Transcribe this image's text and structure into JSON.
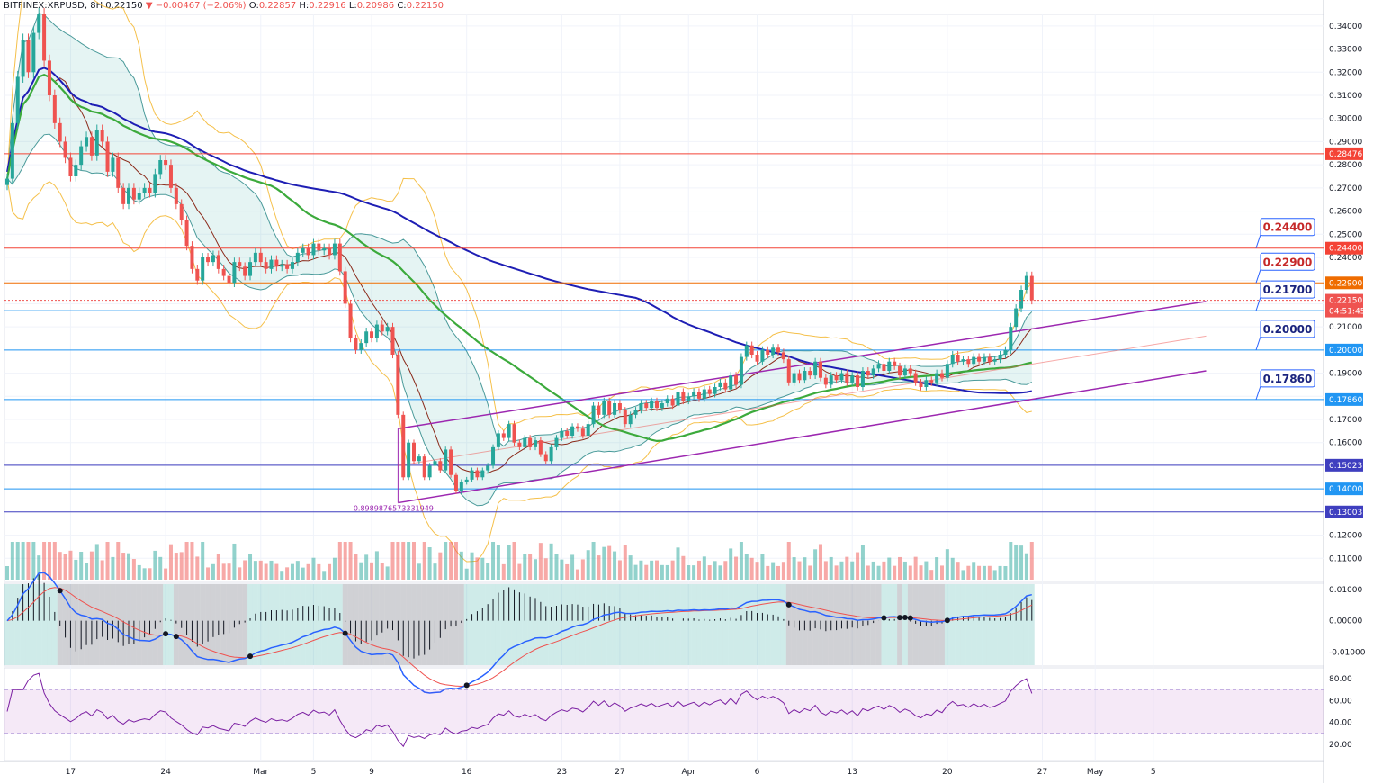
{
  "header": {
    "symbol": "BITFINEX:XRPUSD",
    "interval": "8H",
    "last": "0.22150",
    "arrow": "▼",
    "change": "−0.00467 (−2.06%)",
    "o_label": "O:",
    "o": "0.22857",
    "h_label": "H:",
    "h": "0.22916",
    "l_label": "L:",
    "l": "0.20986",
    "c_label": "C:",
    "c": "0.22150"
  },
  "colors": {
    "up": "#26a69a",
    "down": "#ef5350",
    "sma200": "#1e1eb4",
    "sma50": "#3caa3c",
    "bb": "#f5c04a",
    "channel": "#9c27b0",
    "resistance": "#f44336",
    "support": "#2196f3",
    "orange": "#ef6c00"
  },
  "chart_data": [
    {
      "type": "candlestick",
      "panel": "price",
      "y_scale": {
        "min": 0.1,
        "max": 0.345
      },
      "y_ticks": [
        "0.34000",
        "0.33000",
        "0.32000",
        "0.31000",
        "0.30000",
        "0.29000",
        "0.28000",
        "0.27000",
        "0.26000",
        "0.25000",
        "0.24000",
        "0.23000",
        "0.22000",
        "0.21000",
        "0.20000",
        "0.19000",
        "0.18000",
        "0.17000",
        "0.16000",
        "0.15000",
        "0.14000",
        "0.13000",
        "0.12000",
        "0.11000"
      ],
      "x_labels": [
        {
          "i": 12,
          "t": "17"
        },
        {
          "i": 30,
          "t": "24"
        },
        {
          "i": 48,
          "t": "Mar"
        },
        {
          "i": 58,
          "t": "5"
        },
        {
          "i": 69,
          "t": "9"
        },
        {
          "i": 87,
          "t": "16"
        },
        {
          "i": 105,
          "t": "23"
        },
        {
          "i": 116,
          "t": "27"
        },
        {
          "i": 129,
          "t": "Apr"
        },
        {
          "i": 142,
          "t": "6"
        },
        {
          "i": 160,
          "t": "13"
        },
        {
          "i": 178,
          "t": "20"
        },
        {
          "i": 196,
          "t": "27"
        },
        {
          "i": 206,
          "t": "May"
        },
        {
          "i": 217,
          "t": "5"
        }
      ],
      "price_levels": [
        {
          "price": 0.28476,
          "label": "0.28476",
          "kind": "resistance"
        },
        {
          "price": 0.244,
          "label": "0.24400",
          "kind": "resistance",
          "callout": "0.24400"
        },
        {
          "price": 0.229,
          "label": "0.22900",
          "kind": "orange",
          "callout": "0.22900"
        },
        {
          "price": 0.217,
          "label": "0.21700",
          "kind": "support",
          "callout": "0.21700"
        },
        {
          "price": 0.2,
          "label": "0.20000",
          "kind": "support",
          "callout": "0.20000"
        },
        {
          "price": 0.1786,
          "label": "0.17860",
          "kind": "support",
          "callout": "0.17860"
        },
        {
          "price": 0.15023,
          "label": "0.15023",
          "kind": "indigo"
        },
        {
          "price": 0.14,
          "label": "0.14000",
          "kind": "support"
        },
        {
          "price": 0.13003,
          "label": "0.13003",
          "kind": "indigo"
        }
      ],
      "current_price": "0.22150",
      "countdown": "04:51:45",
      "fib_label": "0.8989876573331949",
      "closes": [
        0.274,
        0.298,
        0.318,
        0.334,
        0.32,
        0.337,
        0.345,
        0.325,
        0.31,
        0.298,
        0.29,
        0.283,
        0.275,
        0.28,
        0.288,
        0.292,
        0.284,
        0.295,
        0.29,
        0.277,
        0.283,
        0.27,
        0.263,
        0.27,
        0.265,
        0.268,
        0.27,
        0.268,
        0.276,
        0.282,
        0.28,
        0.27,
        0.263,
        0.256,
        0.245,
        0.235,
        0.23,
        0.24,
        0.238,
        0.241,
        0.235,
        0.232,
        0.229,
        0.238,
        0.236,
        0.232,
        0.238,
        0.242,
        0.238,
        0.235,
        0.239,
        0.236,
        0.237,
        0.235,
        0.238,
        0.242,
        0.244,
        0.241,
        0.246,
        0.243,
        0.244,
        0.241,
        0.246,
        0.234,
        0.22,
        0.205,
        0.2,
        0.203,
        0.208,
        0.205,
        0.211,
        0.208,
        0.21,
        0.198,
        0.172,
        0.145,
        0.16,
        0.152,
        0.154,
        0.145,
        0.15,
        0.152,
        0.148,
        0.157,
        0.146,
        0.139,
        0.143,
        0.144,
        0.148,
        0.145,
        0.148,
        0.15,
        0.158,
        0.164,
        0.162,
        0.168,
        0.16,
        0.158,
        0.162,
        0.158,
        0.161,
        0.155,
        0.152,
        0.158,
        0.162,
        0.165,
        0.163,
        0.167,
        0.166,
        0.163,
        0.168,
        0.176,
        0.172,
        0.178,
        0.172,
        0.177,
        0.174,
        0.168,
        0.172,
        0.174,
        0.177,
        0.175,
        0.178,
        0.175,
        0.177,
        0.179,
        0.176,
        0.182,
        0.178,
        0.18,
        0.182,
        0.179,
        0.183,
        0.181,
        0.184,
        0.186,
        0.183,
        0.189,
        0.185,
        0.197,
        0.202,
        0.198,
        0.195,
        0.2,
        0.198,
        0.201,
        0.199,
        0.196,
        0.186,
        0.19,
        0.187,
        0.191,
        0.189,
        0.195,
        0.188,
        0.185,
        0.189,
        0.187,
        0.19,
        0.186,
        0.189,
        0.184,
        0.191,
        0.189,
        0.192,
        0.194,
        0.191,
        0.195,
        0.193,
        0.189,
        0.192,
        0.19,
        0.186,
        0.184,
        0.187,
        0.186,
        0.19,
        0.188,
        0.194,
        0.198,
        0.195,
        0.196,
        0.194,
        0.197,
        0.195,
        0.197,
        0.195,
        0.196,
        0.198,
        0.2,
        0.21,
        0.218,
        0.226,
        0.232,
        0.2215
      ]
    },
    {
      "type": "histogram",
      "panel": "macd",
      "y_ticks": [
        "0.01000",
        "0.00000",
        "-0.01000"
      ],
      "y_scale": {
        "min": -0.0145,
        "max": 0.012
      }
    },
    {
      "type": "line",
      "panel": "rsi",
      "y_ticks": [
        "80.00",
        "60.00",
        "40.00",
        "20.00"
      ],
      "y_scale": {
        "min": 5,
        "max": 90
      },
      "bands": [
        70,
        30
      ]
    }
  ]
}
